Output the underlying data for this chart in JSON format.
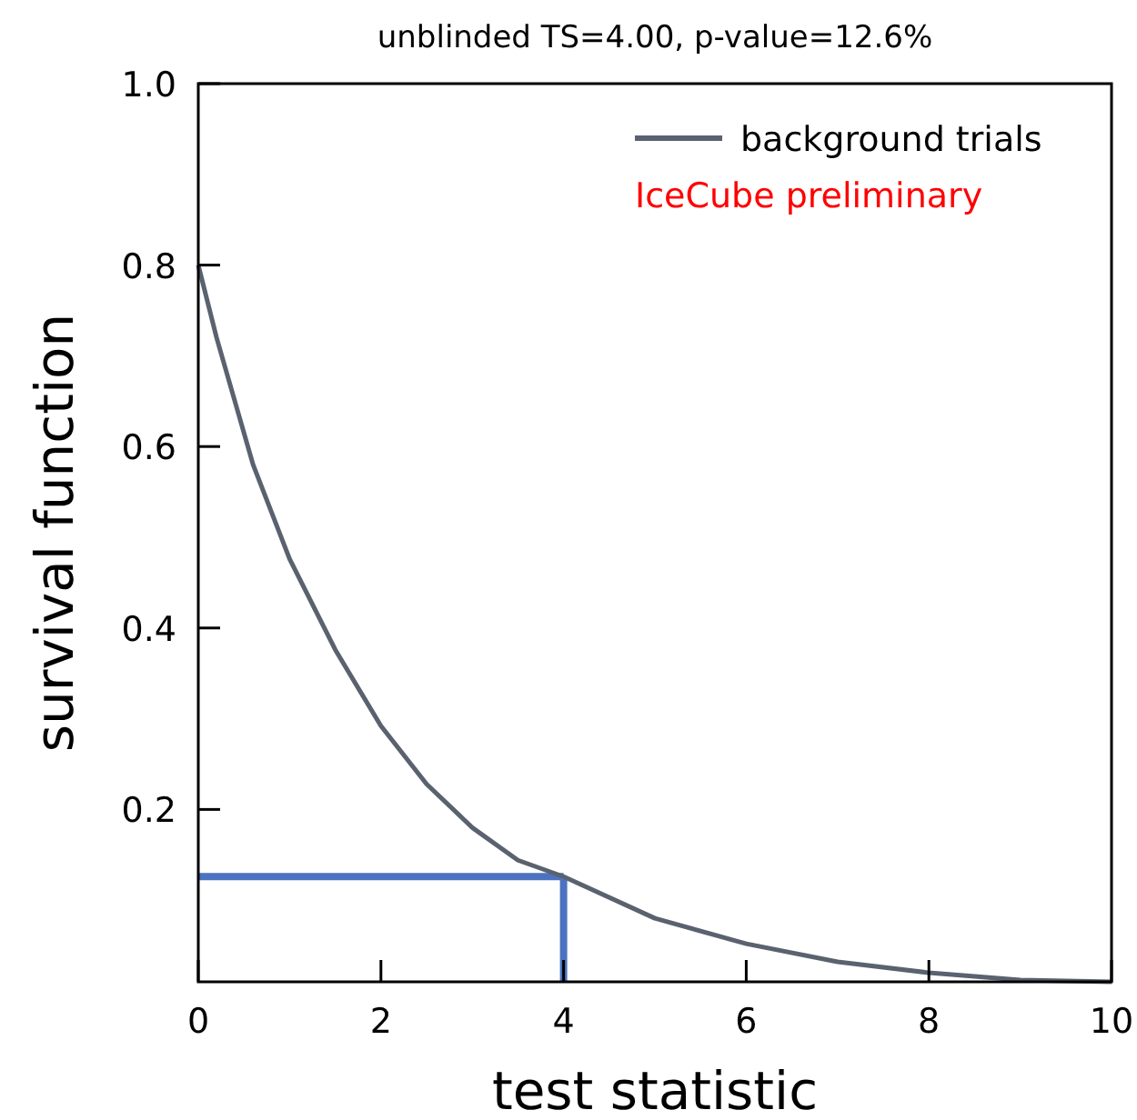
{
  "chart_data": {
    "type": "line",
    "title": "unblinded TS=4.00, p-value=12.6%",
    "xlabel": "test statistic",
    "ylabel": "survival function",
    "annotations": [
      "IceCube preliminary"
    ],
    "series": [
      {
        "name": "background trials",
        "color": "#5a6270",
        "x": [
          0,
          0.2,
          0.6,
          1,
          1.5,
          2,
          2.5,
          3,
          3.5,
          4,
          5,
          6,
          7,
          8,
          9,
          10
        ],
        "values": [
          0.8,
          0.72,
          0.58,
          0.476,
          0.376,
          0.292,
          0.228,
          0.18,
          0.144,
          0.126,
          0.08,
          0.052,
          0.032,
          0.02,
          0.012,
          0.01
        ]
      }
    ],
    "ref_lines": [
      {
        "axis": "x",
        "value": 4,
        "color": "#4c72c0"
      },
      {
        "axis": "y",
        "value": 0.126,
        "color": "#4c72c0"
      }
    ],
    "xlim": [
      0,
      10
    ],
    "xticks": [
      0,
      2,
      4,
      6,
      8,
      10
    ],
    "ylim": [
      0.01,
      1
    ],
    "yticks": [
      0.2,
      0.4,
      0.6,
      0.8,
      {
        "value": 1,
        "label": "1.0"
      }
    ],
    "grid": false,
    "legend": "top right"
  }
}
